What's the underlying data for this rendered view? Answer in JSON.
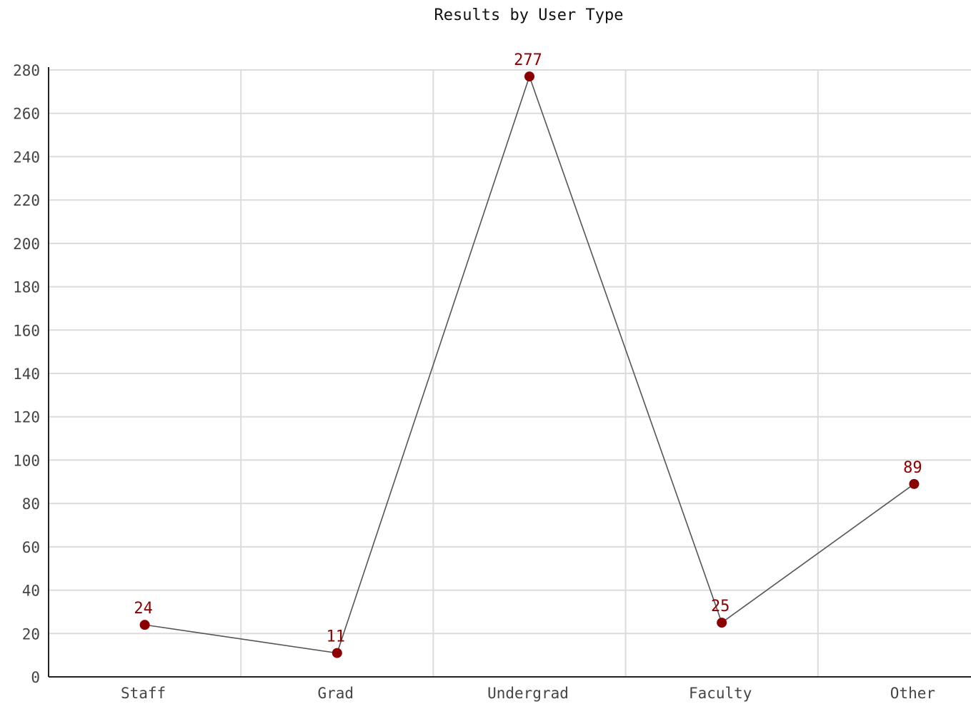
{
  "chart_data": {
    "type": "line",
    "title": "Results by User Type",
    "xlabel": "",
    "ylabel": "",
    "categories": [
      "Staff",
      "Grad",
      "Undergrad",
      "Faculty",
      "Other"
    ],
    "series": [
      {
        "values": [
          24,
          11,
          277,
          25,
          89
        ]
      }
    ],
    "ylim": [
      0,
      280
    ],
    "yticks": [
      0,
      20,
      40,
      60,
      80,
      100,
      120,
      140,
      160,
      180,
      200,
      220,
      240,
      260,
      280
    ],
    "grid": true,
    "legend": "none",
    "data_labels": true,
    "colors": {
      "point": "#8b0000",
      "line": "#555555",
      "data_label": "#8b0000",
      "grid": "#dcdcdc",
      "axis": "#222222"
    }
  }
}
